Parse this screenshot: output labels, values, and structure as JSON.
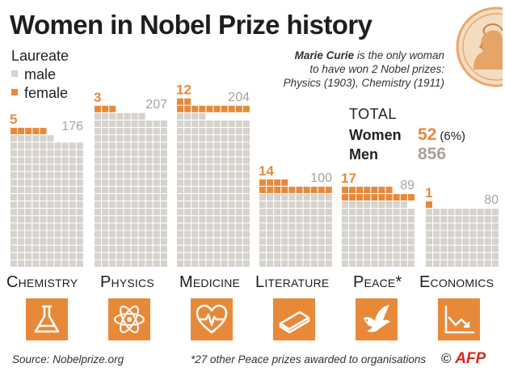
{
  "title": "Women in Nobel Prize history",
  "legend": {
    "heading": "Laureate",
    "items": [
      {
        "label": "male",
        "color": "#d6d2cc"
      },
      {
        "label": "female",
        "color": "#e8893a"
      }
    ]
  },
  "note": {
    "name": "Marie Curie",
    "line1": " is the only woman",
    "line2": "to have won 2 Nobel prizes:",
    "line3": "Physics (1903), Chemistry (1911)"
  },
  "totals": {
    "heading": "Total",
    "women_label": "Women",
    "women_value": "52",
    "women_pct": "(6%)",
    "men_label": "Men",
    "men_value": "856"
  },
  "chart_data": {
    "type": "waffle",
    "title": "Women in Nobel Prize history",
    "legend": [
      "male",
      "female"
    ],
    "categories": [
      "Chemistry",
      "Physics",
      "Medicine",
      "Literature",
      "Peace*",
      "Economics"
    ],
    "series": [
      {
        "name": "female",
        "values": [
          5,
          3,
          12,
          14,
          17,
          1
        ]
      },
      {
        "name": "male",
        "values": [
          176,
          207,
          204,
          100,
          89,
          80
        ]
      }
    ],
    "colors": {
      "male": "#d6d2cc",
      "female": "#e8893a"
    }
  },
  "icons": [
    "flask-icon",
    "atom-icon",
    "heartbeat-icon",
    "book-icon",
    "dove-icon",
    "chart-icon"
  ],
  "source": "Source: Nobelprize.org",
  "footnote": "*27 other Peace prizes awarded to organisations",
  "credit": {
    "copyright": "©",
    "agency": "AFP"
  }
}
